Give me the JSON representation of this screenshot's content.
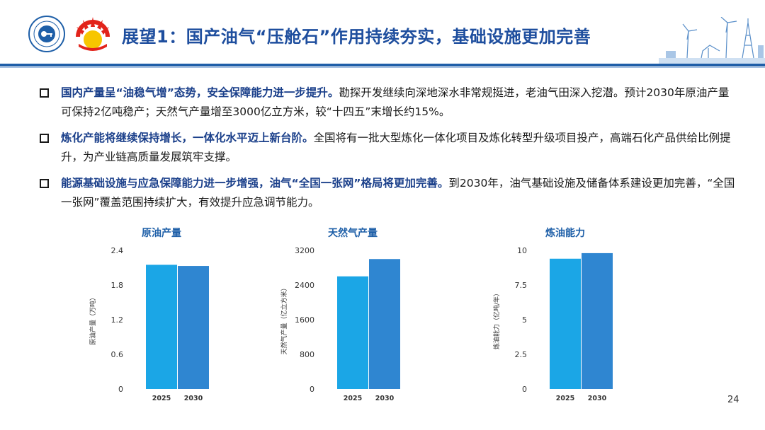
{
  "header": {
    "title": "展望1：国产油气“压舱石”作用持续夯实，基础设施更加完善",
    "logo_left_icon": "institute-seal-logo-icon",
    "logo_right_icon": "cnpc-sunflower-logo-icon",
    "decoration_icon": "oil-derrick-wind-turbine-icon",
    "accent_color": "#1f5ea8"
  },
  "bullets": [
    {
      "bold": "国内产量呈“油稳气增”态势，安全保障能力进一步提升。",
      "text": "勘探开发继续向深地深水非常规挺进，老油气田深入挖潜。预计2030年原油产量可保持2亿吨稳产；天然气产量增至3000亿立方米，较“十四五”末增长约15%。"
    },
    {
      "bold": "炼化产能将继续保持增长，一体化水平迈上新台阶。",
      "text": "全国将有一批大型炼化一体化项目及炼化转型升级项目投产，高端石化产品供给比例提升，为产业链高质量发展筑牢支撑。"
    },
    {
      "bold": "能源基础设施与应急保障能力进一步增强，油气“全国一张网”格局将更加完善。",
      "text": "到2030年，油气基础设施及储备体系建设更加完善，“全国一张网”覆盖范围持续扩大，有效提升应急调节能力。"
    }
  ],
  "chart_data": [
    {
      "type": "bar",
      "title": "原油产量",
      "ylabel": "原油产量（万吨）",
      "categories": [
        "2025",
        "2030"
      ],
      "values": [
        2.15,
        2.13
      ],
      "ylim": [
        0,
        2.4
      ],
      "yticks": [
        "0",
        "0.6",
        "1.2",
        "1.8",
        "2.4"
      ],
      "colors": [
        "#1ba6e6",
        "#2f86d1"
      ],
      "grid": false
    },
    {
      "type": "bar",
      "title": "天然气产量",
      "ylabel": "天然气产量（亿立方米）",
      "categories": [
        "2025",
        "2030"
      ],
      "values": [
        2600,
        3000
      ],
      "ylim": [
        0,
        3200
      ],
      "yticks": [
        "0",
        "800",
        "1600",
        "2400",
        "3200"
      ],
      "colors": [
        "#1ba6e6",
        "#2f86d1"
      ],
      "grid": false
    },
    {
      "type": "bar",
      "title": "炼油能力",
      "ylabel": "炼油能力（亿吨/年）",
      "categories": [
        "2025",
        "2030"
      ],
      "values": [
        9.4,
        9.8
      ],
      "ylim": [
        0,
        10
      ],
      "yticks": [
        "0",
        "2.5",
        "5",
        "7.5",
        "10"
      ],
      "colors": [
        "#1ba6e6",
        "#2f86d1"
      ],
      "grid": false
    }
  ],
  "page_number": "24"
}
